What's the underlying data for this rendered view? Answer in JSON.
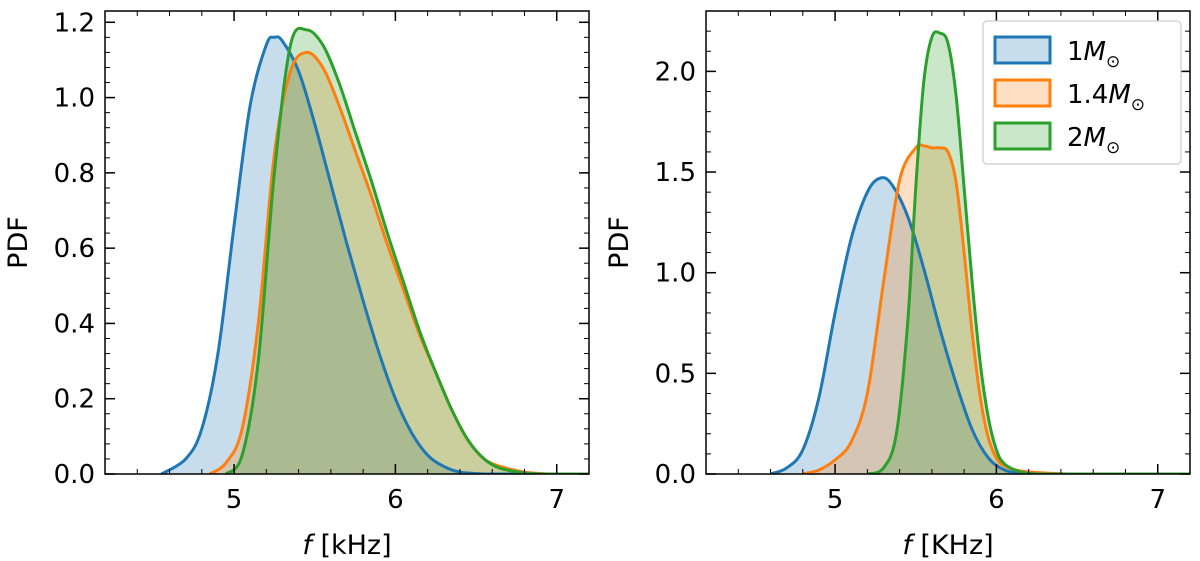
{
  "chart_data": [
    {
      "type": "area",
      "xlabel": {
        "italic": "f",
        "rest": " [kHz]"
      },
      "ylabel": "PDF",
      "xlim": [
        4.2,
        7.2
      ],
      "ylim": [
        0,
        1.23
      ],
      "xticks": [
        5,
        6,
        7
      ],
      "xtick_labels": [
        "5",
        "6",
        "7"
      ],
      "yticks": [
        0.0,
        0.2,
        0.4,
        0.6,
        0.8,
        1.0,
        1.2
      ],
      "ytick_labels": [
        "0.0",
        "0.2",
        "0.4",
        "0.6",
        "0.8",
        "1.0",
        "1.2"
      ],
      "series": [
        {
          "color": "#1f77b4",
          "x": [
            4.55,
            4.7,
            4.8,
            4.9,
            5.0,
            5.1,
            5.2,
            5.25,
            5.3,
            5.4,
            5.5,
            5.6,
            5.7,
            5.8,
            5.9,
            6.0,
            6.1,
            6.2,
            6.3,
            6.4,
            6.55
          ],
          "y": [
            0.0,
            0.04,
            0.12,
            0.32,
            0.66,
            0.98,
            1.14,
            1.16,
            1.15,
            1.07,
            0.93,
            0.77,
            0.61,
            0.46,
            0.32,
            0.2,
            0.11,
            0.05,
            0.02,
            0.005,
            0.0
          ]
        },
        {
          "color": "#ff7f0e",
          "x": [
            4.85,
            4.95,
            5.05,
            5.15,
            5.25,
            5.35,
            5.45,
            5.55,
            5.65,
            5.75,
            5.85,
            5.95,
            6.05,
            6.15,
            6.25,
            6.35,
            6.45,
            6.55,
            6.65,
            6.8,
            6.95
          ],
          "y": [
            0.0,
            0.03,
            0.12,
            0.4,
            0.85,
            1.07,
            1.12,
            1.08,
            0.98,
            0.86,
            0.74,
            0.61,
            0.49,
            0.37,
            0.27,
            0.17,
            0.09,
            0.04,
            0.02,
            0.005,
            0.0
          ]
        },
        {
          "color": "#2ca02c",
          "x": [
            4.95,
            5.05,
            5.15,
            5.25,
            5.35,
            5.45,
            5.55,
            5.65,
            5.75,
            5.85,
            5.95,
            6.05,
            6.15,
            6.25,
            6.35,
            6.45,
            6.55,
            6.65,
            6.8,
            6.9
          ],
          "y": [
            0.0,
            0.05,
            0.3,
            0.8,
            1.14,
            1.18,
            1.14,
            1.04,
            0.91,
            0.78,
            0.64,
            0.51,
            0.38,
            0.27,
            0.17,
            0.09,
            0.04,
            0.015,
            0.003,
            0.0
          ]
        }
      ]
    },
    {
      "type": "area",
      "xlabel": {
        "italic": "f",
        "rest": " [KHz]"
      },
      "ylabel": "PDF",
      "xlim": [
        4.2,
        7.2
      ],
      "ylim": [
        0,
        2.3
      ],
      "xticks": [
        5,
        6,
        7
      ],
      "xtick_labels": [
        "5",
        "6",
        "7"
      ],
      "yticks": [
        0.0,
        0.5,
        1.0,
        1.5,
        2.0
      ],
      "ytick_labels": [
        "0.0",
        "0.5",
        "1.0",
        "1.5",
        "2.0"
      ],
      "legend": {
        "position": "top-right",
        "entries": [
          {
            "main": "1",
            "italic": "M",
            "sub": "⊙"
          },
          {
            "main": "1.4",
            "italic": "M",
            "sub": "⊙"
          },
          {
            "main": "2",
            "italic": "M",
            "sub": "⊙"
          }
        ]
      },
      "series": [
        {
          "color": "#1f77b4",
          "x": [
            4.6,
            4.7,
            4.8,
            4.9,
            5.0,
            5.1,
            5.2,
            5.28,
            5.35,
            5.45,
            5.55,
            5.65,
            5.75,
            5.85,
            5.95,
            6.05,
            6.15,
            6.3
          ],
          "y": [
            0.0,
            0.03,
            0.12,
            0.38,
            0.8,
            1.17,
            1.4,
            1.47,
            1.44,
            1.28,
            1.02,
            0.72,
            0.45,
            0.22,
            0.08,
            0.02,
            0.005,
            0.0
          ]
        },
        {
          "color": "#ff7f0e",
          "x": [
            4.8,
            4.9,
            5.0,
            5.1,
            5.2,
            5.3,
            5.4,
            5.5,
            5.55,
            5.6,
            5.65,
            5.7,
            5.75,
            5.8,
            5.85,
            5.9,
            5.95,
            6.0,
            6.05,
            6.15,
            6.3,
            6.45
          ],
          "y": [
            0.0,
            0.02,
            0.07,
            0.16,
            0.4,
            0.95,
            1.46,
            1.62,
            1.63,
            1.62,
            1.62,
            1.6,
            1.45,
            1.1,
            0.7,
            0.38,
            0.18,
            0.08,
            0.04,
            0.015,
            0.005,
            0.0
          ]
        },
        {
          "color": "#2ca02c",
          "x": [
            5.2,
            5.3,
            5.38,
            5.45,
            5.5,
            5.55,
            5.6,
            5.65,
            5.7,
            5.75,
            5.8,
            5.85,
            5.9,
            5.95,
            6.0,
            6.05,
            6.15,
            6.25
          ],
          "y": [
            0.0,
            0.03,
            0.2,
            0.75,
            1.42,
            1.95,
            2.17,
            2.19,
            2.14,
            1.88,
            1.42,
            0.95,
            0.55,
            0.28,
            0.12,
            0.05,
            0.01,
            0.0
          ]
        }
      ]
    }
  ]
}
